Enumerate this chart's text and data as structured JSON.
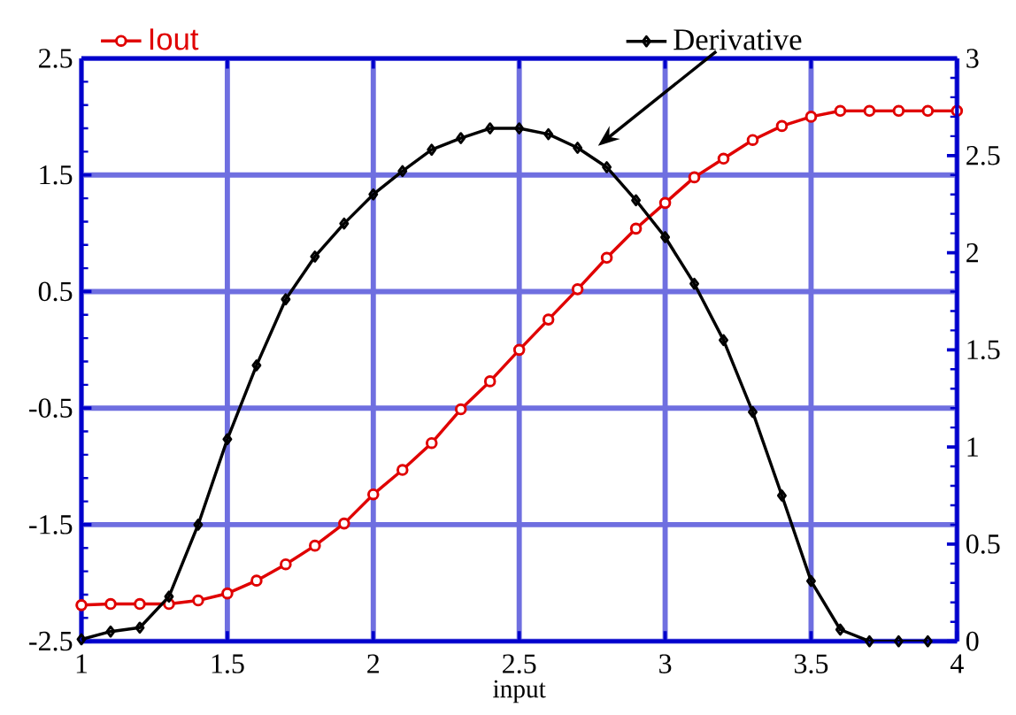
{
  "chart_data": {
    "type": "line",
    "xlabel": "input",
    "xlim": [
      1,
      4
    ],
    "xticks": [
      1,
      1.5,
      2,
      2.5,
      3,
      3.5,
      4
    ],
    "ylim": [
      -2.5,
      2.5
    ],
    "yticks": [
      -2.5,
      -1.5,
      -0.5,
      0.5,
      1.5,
      2.5
    ],
    "y2lim": [
      0,
      3
    ],
    "y2ticks": [
      0,
      0.5,
      1,
      1.5,
      2,
      2.5,
      3
    ],
    "grid": true,
    "legend": "top",
    "line_style": "solid",
    "series": [
      {
        "name": "Iout",
        "color": "#e00000",
        "marker": "circle",
        "x": [
          1,
          1.1,
          1.2,
          1.3,
          1.4,
          1.5,
          1.6,
          1.7,
          1.8,
          1.9,
          2,
          2.1,
          2.2,
          2.3,
          2.4,
          2.5,
          2.6,
          2.7,
          2.8,
          2.9,
          3,
          3.1,
          3.2,
          3.3,
          3.4,
          3.5,
          3.6,
          3.7,
          3.8,
          3.9,
          4
        ],
        "values": [
          -2.19,
          -2.18,
          -2.18,
          -2.18,
          -2.15,
          -2.09,
          -1.98,
          -1.84,
          -1.68,
          -1.49,
          -1.24,
          -1.03,
          -0.8,
          -0.51,
          -0.27,
          0.0,
          0.26,
          0.52,
          0.79,
          1.04,
          1.26,
          1.48,
          1.64,
          1.8,
          1.92,
          2.0,
          2.05,
          2.05,
          2.05,
          2.05,
          2.05
        ]
      },
      {
        "name": "Derivative",
        "color": "#000000",
        "marker": "diamond",
        "axis": "y2",
        "x": [
          1,
          1.1,
          1.2,
          1.3,
          1.4,
          1.5,
          1.6,
          1.7,
          1.8,
          1.9,
          2,
          2.1,
          2.2,
          2.3,
          2.4,
          2.5,
          2.6,
          2.7,
          2.8,
          2.9,
          3,
          3.1,
          3.2,
          3.3,
          3.4,
          3.5,
          3.6,
          3.7,
          3.8,
          3.9
        ],
        "values": [
          0.01,
          0.05,
          0.07,
          0.23,
          0.6,
          1.04,
          1.42,
          1.76,
          1.98,
          2.15,
          2.3,
          2.42,
          2.53,
          2.59,
          2.64,
          2.64,
          2.61,
          2.54,
          2.44,
          2.27,
          2.08,
          1.84,
          1.55,
          1.18,
          0.75,
          0.31,
          0.06,
          0,
          0,
          0
        ]
      }
    ]
  }
}
